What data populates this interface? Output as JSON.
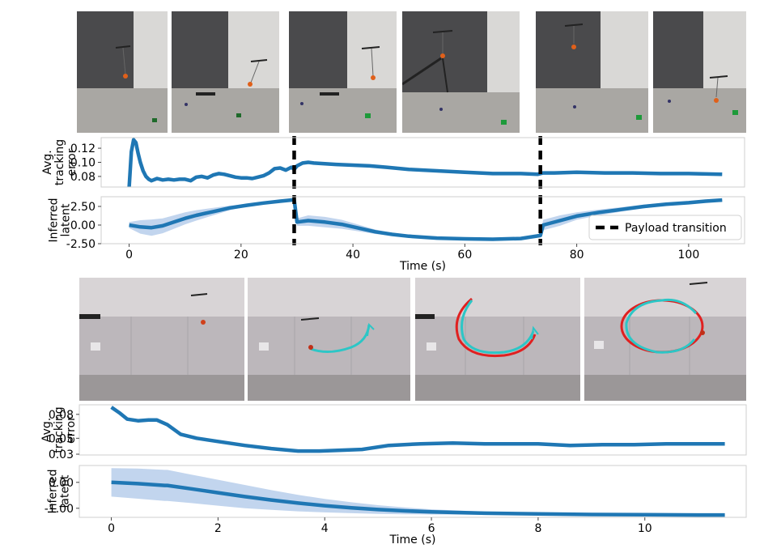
{
  "figure": {
    "top": {
      "photos": [
        {
          "scene": "drone-with-hanging-payload"
        },
        {
          "scene": "drone-with-hanging-payload"
        },
        {
          "scene": "drone-with-hanging-payload"
        },
        {
          "scene": "drone-with-hanging-payload-rod"
        },
        {
          "scene": "drone-with-hanging-payload"
        },
        {
          "scene": "drone-with-hanging-payload"
        }
      ]
    },
    "bottom": {
      "photos": [
        {
          "scene": "drone-near-wall"
        },
        {
          "scene": "drone-trajectory-start"
        },
        {
          "scene": "drone-trajectory-half-circle"
        },
        {
          "scene": "drone-trajectory-full-circle"
        }
      ]
    }
  },
  "chart_data": [
    {
      "type": "line",
      "ylabel": "Avg.\ntracking\nerror",
      "xlim": [
        -5,
        110
      ],
      "ylim": [
        0.065,
        0.135
      ],
      "yticks": [
        0.12,
        0.1,
        0.08
      ],
      "ytick_labels": [
        "0.12",
        "0.10",
        "0.08"
      ],
      "vlines": [
        29.5,
        73.5
      ],
      "series": [
        {
          "color": "#1f77b4",
          "x": [
            0,
            0.4,
            0.8,
            1.2,
            1.6,
            2,
            2.5,
            3,
            3.5,
            4,
            5,
            6,
            7,
            8,
            9,
            10,
            11,
            12,
            13,
            14,
            15,
            16,
            17,
            18,
            19,
            20,
            21,
            22,
            23,
            24,
            25,
            26,
            27,
            28,
            29,
            29.5,
            30,
            31,
            32,
            33,
            35,
            37,
            40,
            43,
            46,
            50,
            55,
            60,
            65,
            70,
            73,
            74,
            76,
            80,
            85,
            90,
            95,
            100,
            106
          ],
          "y": [
            0.065,
            0.115,
            0.132,
            0.128,
            0.113,
            0.1,
            0.088,
            0.08,
            0.076,
            0.074,
            0.077,
            0.075,
            0.076,
            0.075,
            0.076,
            0.076,
            0.074,
            0.079,
            0.08,
            0.078,
            0.082,
            0.084,
            0.083,
            0.081,
            0.079,
            0.078,
            0.078,
            0.077,
            0.079,
            0.081,
            0.085,
            0.091,
            0.092,
            0.089,
            0.093,
            0.09,
            0.095,
            0.099,
            0.1,
            0.099,
            0.098,
            0.097,
            0.096,
            0.095,
            0.093,
            0.09,
            0.088,
            0.086,
            0.084,
            0.084,
            0.083,
            0.085,
            0.085,
            0.086,
            0.085,
            0.085,
            0.084,
            0.084,
            0.083
          ]
        }
      ]
    },
    {
      "type": "line",
      "ylabel": "Inferred\nlatent",
      "xlim": [
        -5,
        110
      ],
      "ylim": [
        -2.5,
        3.8
      ],
      "yticks": [
        2.5,
        0,
        -2.5
      ],
      "ytick_labels": [
        "2.50",
        "0.00",
        "-2.50"
      ],
      "xticks": [
        0,
        20,
        40,
        60,
        80,
        100
      ],
      "xtick_labels": [
        "0",
        "20",
        "40",
        "60",
        "80",
        "100"
      ],
      "xlabel": "Time (s)",
      "legend": {
        "label": "Payload transition",
        "position": "bottom-right"
      },
      "vlines": [
        29.5,
        73.5
      ],
      "series": [
        {
          "color": "#1f77b4",
          "band_color": "#aec7e8",
          "x": [
            0,
            2,
            4,
            6,
            8,
            10,
            12,
            15,
            18,
            21,
            24,
            27,
            29.5,
            30,
            32,
            35,
            38,
            41,
            44,
            47,
            50,
            55,
            60,
            65,
            70,
            73.5,
            74,
            77,
            80,
            84,
            88,
            92,
            96,
            100,
            103,
            106
          ],
          "y": [
            0.0,
            -0.25,
            -0.35,
            -0.1,
            0.4,
            0.9,
            1.3,
            1.8,
            2.3,
            2.65,
            2.95,
            3.2,
            3.4,
            0.4,
            0.6,
            0.4,
            0.1,
            -0.4,
            -0.9,
            -1.25,
            -1.5,
            -1.75,
            -1.85,
            -1.9,
            -1.8,
            -1.4,
            0.0,
            0.6,
            1.2,
            1.7,
            2.1,
            2.5,
            2.8,
            3.0,
            3.2,
            3.35
          ],
          "band": [
            0.4,
            0.9,
            1.1,
            1.0,
            0.9,
            0.8,
            0.7,
            0.5,
            0.3,
            0.2,
            0.15,
            0.1,
            0.05,
            0.5,
            0.7,
            0.7,
            0.6,
            0.45,
            0.3,
            0.2,
            0.15,
            0.1,
            0.08,
            0.06,
            0.06,
            0.06,
            0.7,
            0.7,
            0.5,
            0.4,
            0.3,
            0.25,
            0.2,
            0.15,
            0.12,
            0.1
          ]
        }
      ]
    },
    {
      "type": "line",
      "ylabel": "Avg.\ntracking\nerror",
      "xlim": [
        -0.6,
        11.9
      ],
      "ylim": [
        0.029,
        0.092
      ],
      "yticks": [
        0.08,
        0.05,
        0.03
      ],
      "ytick_labels": [
        "0.08",
        "0.05",
        "0.03"
      ],
      "series": [
        {
          "color": "#1f77b4",
          "x": [
            0,
            0.15,
            0.3,
            0.5,
            0.7,
            0.85,
            1.05,
            1.3,
            1.6,
            2.0,
            2.5,
            3.0,
            3.5,
            3.9,
            4.3,
            4.7,
            5.2,
            5.8,
            6.4,
            7.0,
            7.6,
            8.0,
            8.6,
            9.2,
            9.8,
            10.4,
            11.0,
            11.5
          ],
          "y": [
            0.089,
            0.082,
            0.074,
            0.072,
            0.073,
            0.073,
            0.067,
            0.055,
            0.05,
            0.046,
            0.041,
            0.037,
            0.034,
            0.034,
            0.035,
            0.036,
            0.041,
            0.043,
            0.044,
            0.043,
            0.043,
            0.043,
            0.041,
            0.042,
            0.042,
            0.043,
            0.043,
            0.043
          ]
        }
      ]
    },
    {
      "type": "line",
      "ylabel": "Inferred\nlatent",
      "xlim": [
        -0.6,
        11.9
      ],
      "ylim": [
        -1.35,
        0.65
      ],
      "yticks": [
        0,
        -1
      ],
      "ytick_labels": [
        "0.00",
        "-1.00"
      ],
      "xticks": [
        0,
        2,
        4,
        6,
        8,
        10
      ],
      "xtick_labels": [
        "0",
        "2",
        "4",
        "6",
        "8",
        "10"
      ],
      "xlabel": "Time (s)",
      "series": [
        {
          "color": "#1f77b4",
          "band_color": "#aec7e8",
          "x": [
            0,
            0.5,
            1.0,
            1.05,
            1.5,
            2,
            2.5,
            3,
            3.5,
            4,
            4.5,
            5,
            5.5,
            6,
            7,
            8,
            9,
            10,
            11,
            11.5
          ],
          "y": [
            0.0,
            -0.05,
            -0.12,
            -0.12,
            -0.25,
            -0.4,
            -0.55,
            -0.68,
            -0.8,
            -0.9,
            -0.98,
            -1.05,
            -1.1,
            -1.14,
            -1.19,
            -1.22,
            -1.24,
            -1.25,
            -1.26,
            -1.26
          ],
          "band": [
            0.55,
            0.58,
            0.6,
            0.6,
            0.55,
            0.5,
            0.45,
            0.38,
            0.32,
            0.26,
            0.21,
            0.17,
            0.13,
            0.1,
            0.06,
            0.04,
            0.03,
            0.02,
            0.02,
            0.02
          ]
        }
      ]
    }
  ]
}
